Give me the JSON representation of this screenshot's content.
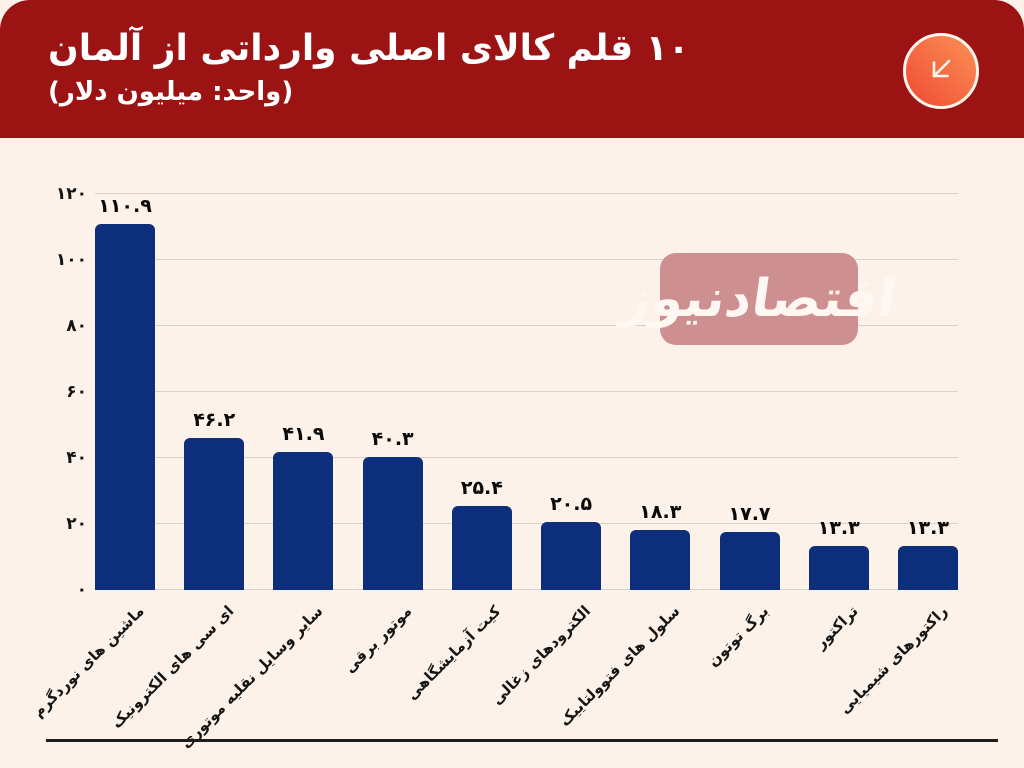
{
  "header": {
    "title": "۱۰ قلم کالای اصلی وارداتی از آلمان",
    "subtitle": "(واحد: میلیون دلار)",
    "bg_color": "#9b1313",
    "icon": "arrow-down-left-icon",
    "icon_gradient": [
      "#ef4a33",
      "#fb9156"
    ]
  },
  "watermark": {
    "text": "اقتصادنیوز",
    "bg_color": "#cd8f90",
    "text_color": "#fff7f2"
  },
  "chart_data": {
    "type": "bar",
    "title": "۱۰ قلم کالای اصلی وارداتی از آلمان",
    "subtitle_unit": "(واحد: میلیون دلار)",
    "categories": [
      "ماشین های نوردگرم",
      "ای سی های الکترونیک",
      "سایر وسایل نقلیه موتوری",
      "موتور برقی",
      "کیت آزمایشگاهی",
      "الکترودهای زغالی",
      "سلول های فتوولتاییک",
      "برگ توتون",
      "تراکتور",
      "راکتورهای شیمیایی"
    ],
    "values": [
      110.9,
      46.2,
      41.9,
      40.3,
      25.4,
      20.5,
      18.3,
      17.7,
      13.3,
      13.3
    ],
    "value_labels": [
      "۱۱۰.۹",
      "۴۶.۲",
      "۴۱.۹",
      "۴۰.۳",
      "۲۵.۴",
      "۲۰.۵",
      "۱۸.۳",
      "۱۷.۷",
      "۱۳.۳",
      "۱۳.۳"
    ],
    "ylim": [
      0,
      120
    ],
    "yticks": [
      {
        "value": 0,
        "label": "۰"
      },
      {
        "value": 20,
        "label": "۲۰"
      },
      {
        "value": 40,
        "label": "۴۰"
      },
      {
        "value": 60,
        "label": "۶۰"
      },
      {
        "value": 80,
        "label": "۸۰"
      },
      {
        "value": 100,
        "label": "۱۰۰"
      },
      {
        "value": 120,
        "label": "۱۲۰"
      }
    ],
    "grid": true,
    "legend": false,
    "xlabel": "",
    "ylabel": "",
    "bar_color": "#0d2e7b",
    "background_color": "#fcf2e9",
    "gridline_color": "#d8d2ca"
  }
}
